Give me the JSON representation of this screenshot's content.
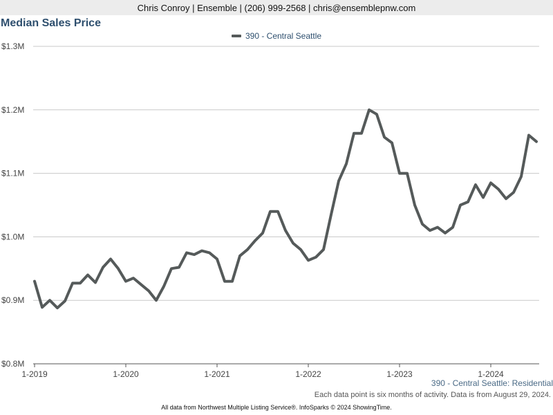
{
  "header": {
    "contact": "Chris Conroy | Ensemble | (206) 999-2568 | chris@ensemblepnw.com"
  },
  "footer": {
    "series_label": "390 - Central Seattle: Residential",
    "note": "Each data point is six months of activity. Data is from August 29, 2024.",
    "source": "All data from Northwest Multiple Listing Service®. InfoSparks © 2024 ShowingTime."
  },
  "colors": {
    "line": "#555a5a",
    "title": "#2e4f6e",
    "grid": "#c8c8c8"
  },
  "chart_data": {
    "type": "line",
    "title": "Median Sales Price",
    "xlabel": "",
    "ylabel": "",
    "legend_position": "top-center",
    "grid": true,
    "ylim": [
      800000,
      1300000
    ],
    "y_ticks": [
      800000,
      900000,
      1000000,
      1100000,
      1200000,
      1300000
    ],
    "y_tick_labels": [
      "$0.8M",
      "$0.9M",
      "$1.0M",
      "$1.1M",
      "$1.2M",
      "$1.3M"
    ],
    "x_ticks": [
      "1-2019",
      "1-2020",
      "1-2021",
      "1-2022",
      "1-2023",
      "1-2024"
    ],
    "x": [
      "2019-01",
      "2019-02",
      "2019-03",
      "2019-04",
      "2019-05",
      "2019-06",
      "2019-07",
      "2019-08",
      "2019-09",
      "2019-10",
      "2019-11",
      "2019-12",
      "2020-01",
      "2020-02",
      "2020-03",
      "2020-04",
      "2020-05",
      "2020-06",
      "2020-07",
      "2020-08",
      "2020-09",
      "2020-10",
      "2020-11",
      "2020-12",
      "2021-01",
      "2021-02",
      "2021-03",
      "2021-04",
      "2021-05",
      "2021-06",
      "2021-07",
      "2021-08",
      "2021-09",
      "2021-10",
      "2021-11",
      "2021-12",
      "2022-01",
      "2022-02",
      "2022-03",
      "2022-04",
      "2022-05",
      "2022-06",
      "2022-07",
      "2022-08",
      "2022-09",
      "2022-10",
      "2022-11",
      "2022-12",
      "2023-01",
      "2023-02",
      "2023-03",
      "2023-04",
      "2023-05",
      "2023-06",
      "2023-07",
      "2023-08",
      "2023-09",
      "2023-10",
      "2023-11",
      "2023-12",
      "2024-01",
      "2024-02",
      "2024-03",
      "2024-04",
      "2024-05",
      "2024-06",
      "2024-07"
    ],
    "series": [
      {
        "name": "390 - Central Seattle",
        "values": [
          930000,
          889000,
          900000,
          888000,
          899000,
          927000,
          927000,
          940000,
          928000,
          952000,
          965000,
          950000,
          930000,
          935000,
          925000,
          915000,
          900000,
          922000,
          950000,
          952000,
          975000,
          972000,
          978000,
          975000,
          965000,
          930000,
          930000,
          970000,
          980000,
          994000,
          1006000,
          1040000,
          1040000,
          1010000,
          990000,
          980000,
          963000,
          968000,
          980000,
          1035000,
          1088000,
          1115000,
          1163000,
          1163000,
          1200000,
          1193000,
          1157000,
          1148000,
          1100000,
          1100000,
          1050000,
          1020000,
          1010000,
          1015000,
          1006000,
          1015000,
          1050000,
          1055000,
          1082000,
          1062000,
          1085000,
          1075000,
          1060000,
          1070000,
          1095000,
          1160000,
          1150000
        ]
      }
    ]
  }
}
